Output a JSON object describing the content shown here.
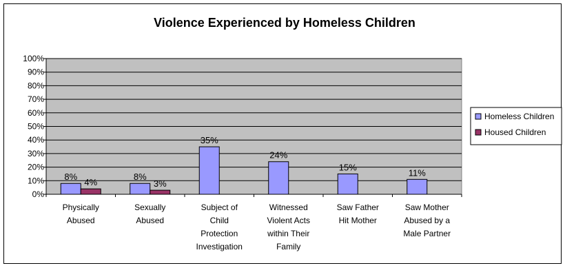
{
  "chart_data": {
    "type": "bar",
    "title": "Violence Experienced by Homeless Children",
    "xlabel": "",
    "ylabel": "",
    "ylim": [
      0,
      100
    ],
    "y_tick_labels": [
      "0%",
      "10%",
      "20%",
      "30%",
      "40%",
      "50%",
      "60%",
      "70%",
      "80%",
      "90%",
      "100%"
    ],
    "grid": true,
    "legend_position": "right",
    "plot_background": "#c0c0c0",
    "categories": [
      [
        "Physically",
        "Abused"
      ],
      [
        "Sexually",
        "Abused"
      ],
      [
        "Subject of",
        "Child",
        "Protection",
        "Investigation"
      ],
      [
        "Witnessed",
        "Violent Acts",
        "within Their",
        "Family"
      ],
      [
        "Saw Father",
        "Hit Mother"
      ],
      [
        "Saw Mother",
        "Abused by a",
        "Male Partner"
      ]
    ],
    "series": [
      {
        "name": "Homeless Children",
        "color": "#9999ff",
        "values": [
          8,
          8,
          35,
          24,
          15,
          11
        ],
        "labels": [
          "8%",
          "8%",
          "35%",
          "24%",
          "15%",
          "11%"
        ]
      },
      {
        "name": "Housed Children",
        "color": "#993366",
        "values": [
          4,
          3,
          null,
          null,
          null,
          null
        ],
        "labels": [
          "4%",
          "3%",
          "",
          "",
          "",
          ""
        ]
      }
    ]
  }
}
